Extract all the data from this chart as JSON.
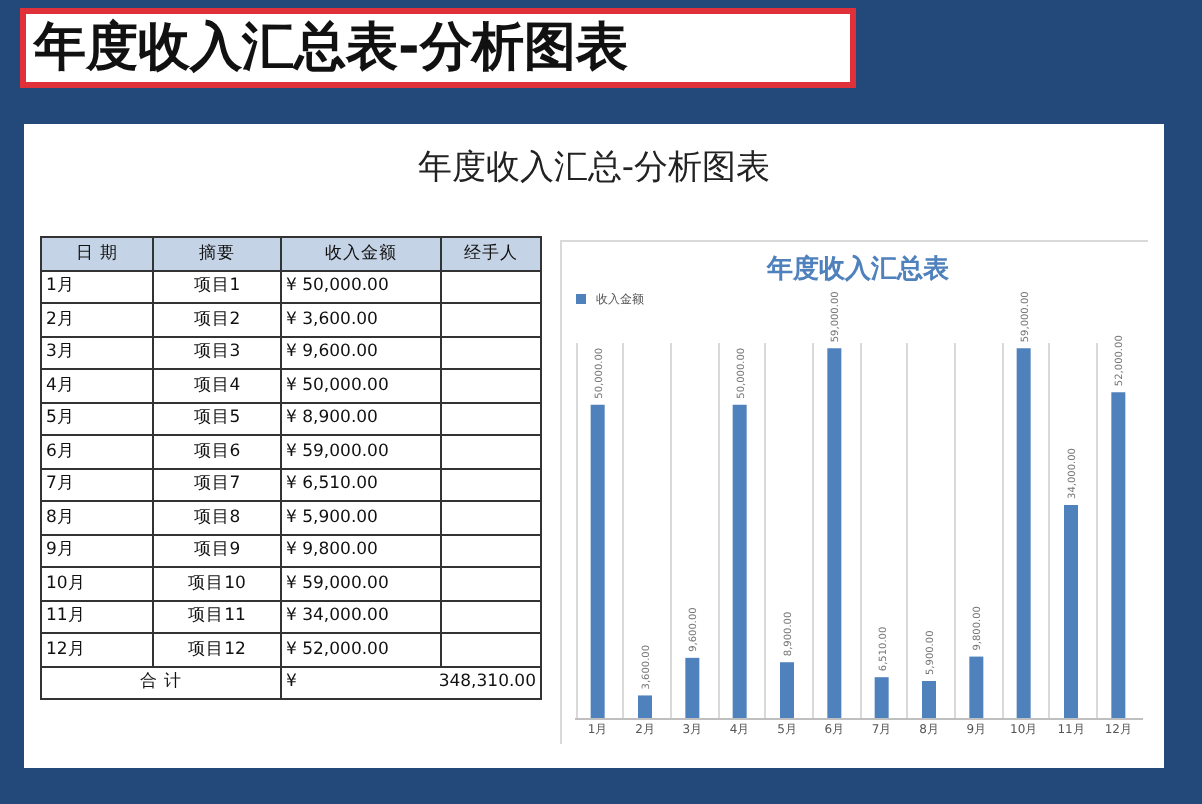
{
  "chart_data": {
    "type": "bar",
    "title": "年度收入汇总表",
    "categories": [
      "1月",
      "2月",
      "3月",
      "4月",
      "5月",
      "6月",
      "7月",
      "8月",
      "9月",
      "10月",
      "11月",
      "12月"
    ],
    "series": [
      {
        "name": "收入金额",
        "color": "#4f81bd",
        "values": [
          50000,
          3600,
          9600,
          50000,
          8900,
          59000,
          6510,
          5900,
          9800,
          59000,
          34000,
          52000
        ],
        "value_labels": [
          "50,000.00",
          "3,600.00",
          "9,600.00",
          "50,000.00",
          "8,900.00",
          "59,000.00",
          "6,510.00",
          "5,900.00",
          "9,800.00",
          "59,000.00",
          "34,000.00",
          "52,000.00"
        ]
      }
    ],
    "legend": "top",
    "grid": "x",
    "annotations": [
      "年度收入汇总表-分析图表",
      "年度收入汇总-分析图表",
      "日 期",
      "摘要",
      "收入金额",
      "经手人",
      "项目1",
      "项目2",
      "项目3",
      "项目4",
      "项目5",
      "项目6",
      "项目7",
      "项目8",
      "项目9",
      "项目10",
      "项目11",
      "项目12",
      "合 计",
      "¥",
      "348,310.00"
    ]
  }
}
